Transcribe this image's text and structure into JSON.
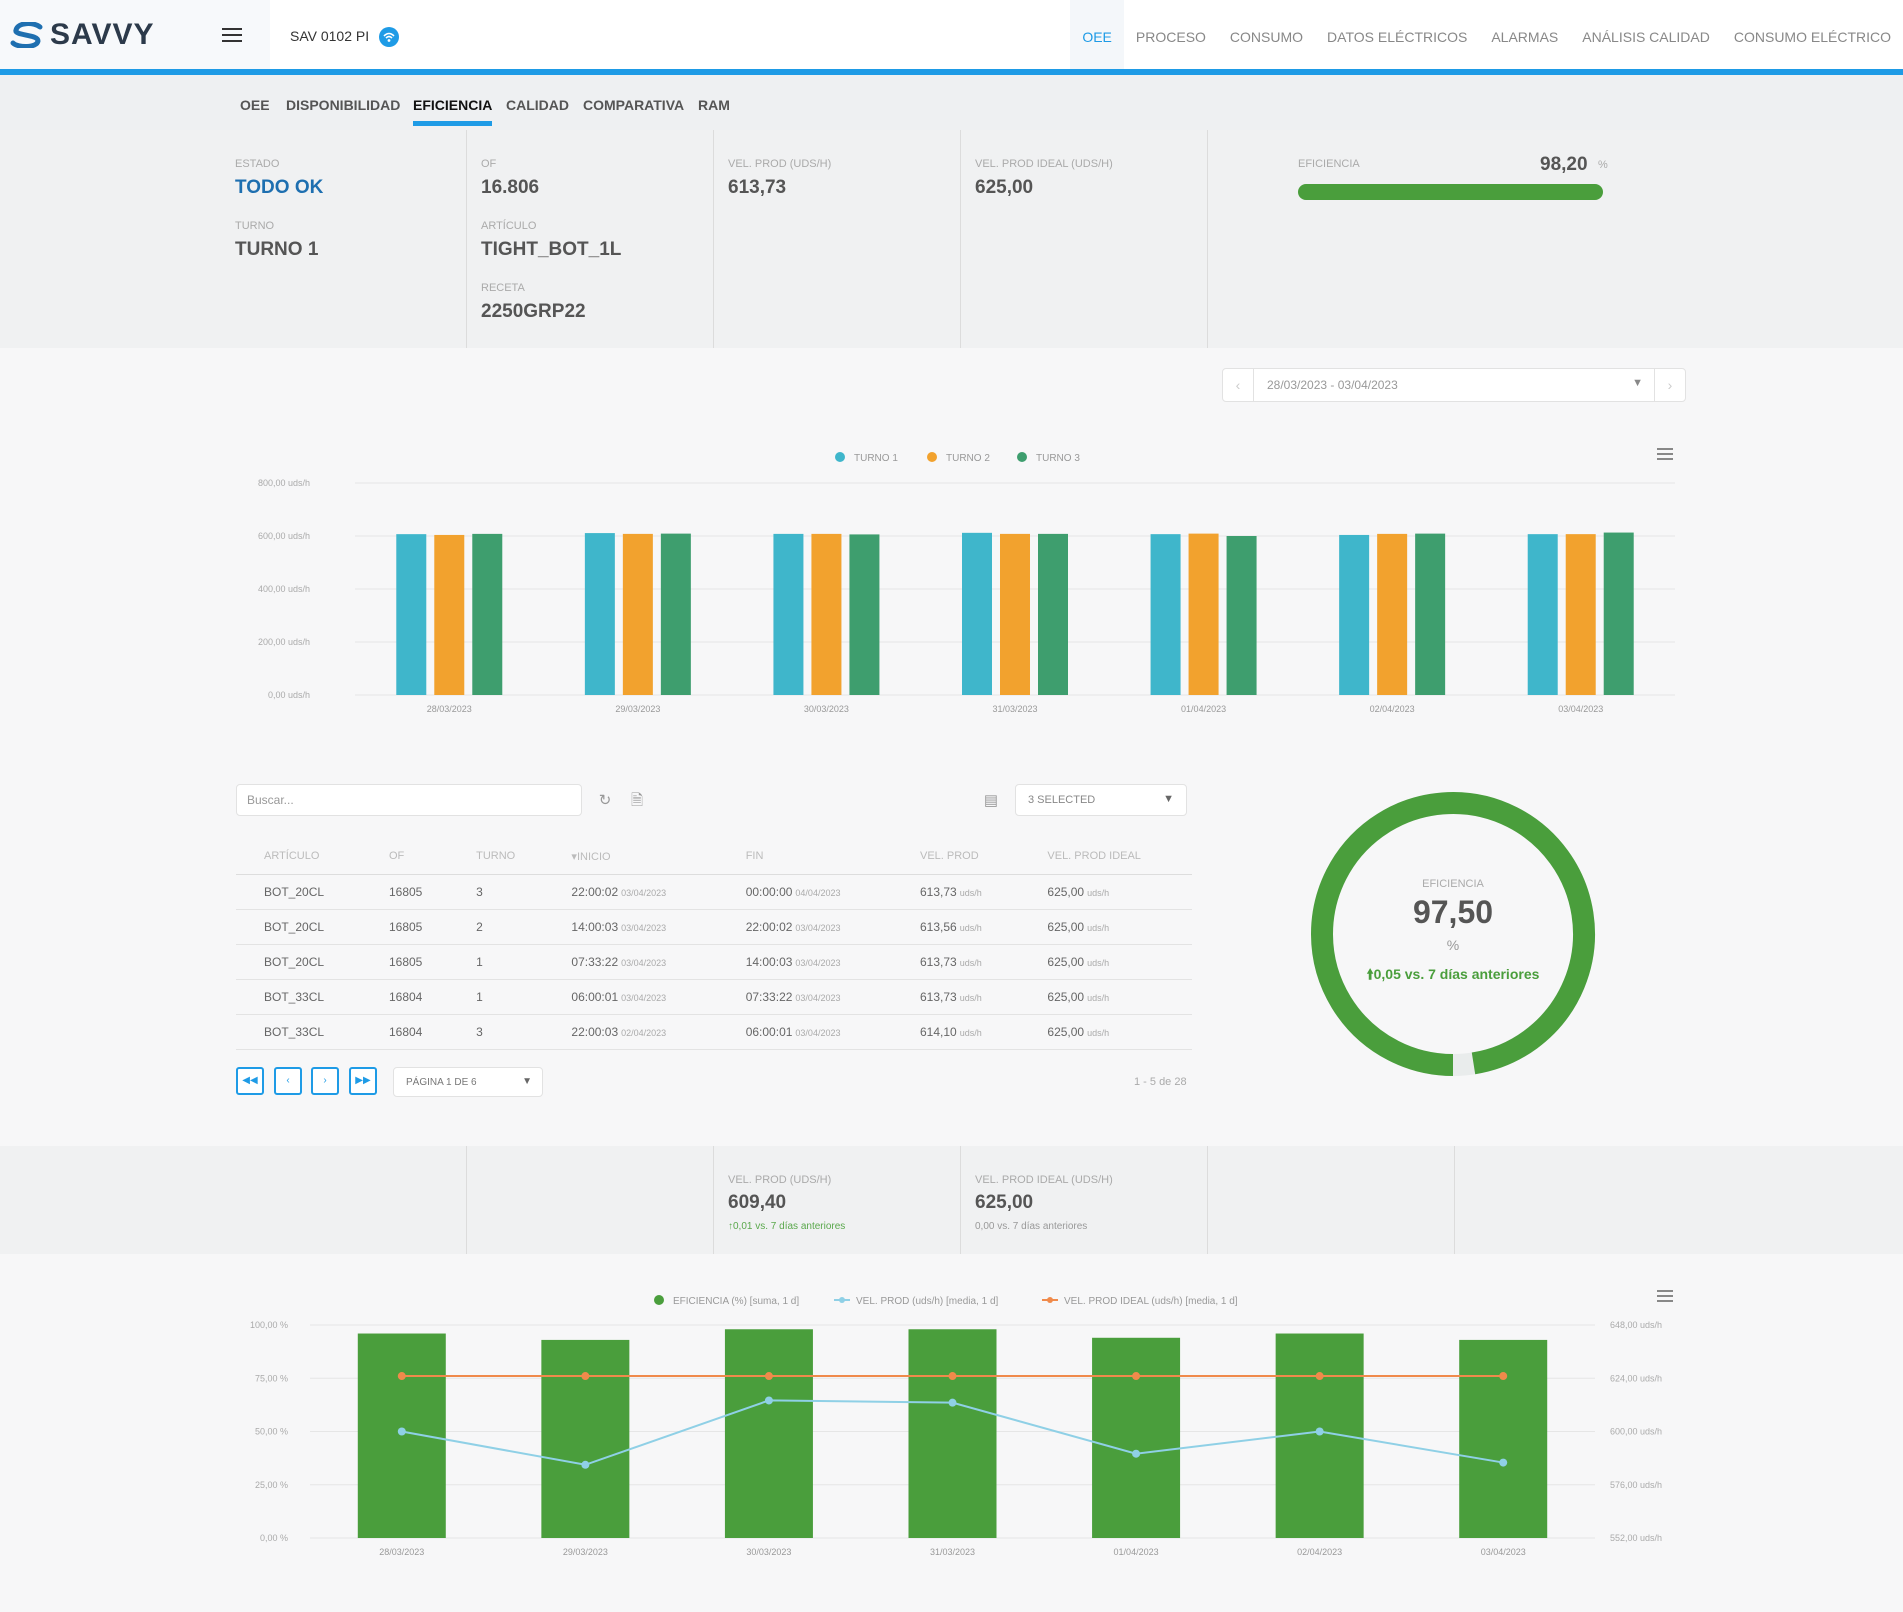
{
  "app": {
    "logo": "SAVVY",
    "machine": "SAV 0102 PI"
  },
  "top_nav": [
    "OEE",
    "PROCESO",
    "CONSUMO",
    "DATOS ELÉCTRICOS",
    "ALARMAS",
    "ANÁLISIS CALIDAD",
    "CONSUMO ELÉCTRICO"
  ],
  "sub_tabs": [
    "OEE",
    "DISPONIBILIDAD",
    "EFICIENCIA",
    "CALIDAD",
    "COMPARATIVA",
    "RAM"
  ],
  "kpi": {
    "estado_label": "ESTADO",
    "estado": "TODO OK",
    "turno_label": "TURNO",
    "turno": "TURNO 1",
    "of_label": "OF",
    "of": "16.806",
    "articulo_label": "ARTÍCULO",
    "articulo": "TIGHT_BOT_1L",
    "receta_label": "RECETA",
    "receta": "2250GRP22",
    "vel_label": "VEL. PROD (uds/h)",
    "vel": "613,73",
    "vel_ideal_label": "VEL. PROD IDEAL (uds/h)",
    "vel_ideal": "625,00",
    "eficiencia_label": "EFICIENCIA",
    "eficiencia": "98,20",
    "eficiencia_unit": "%",
    "eficiencia_fraction": 0.982
  },
  "date_range": "28/03/2023 - 03/04/2023",
  "chart1": {
    "type": "bar",
    "legend": [
      "TURNO 1",
      "TURNO 2",
      "TURNO 3"
    ],
    "colors": [
      "#3fb6cb",
      "#f2a22e",
      "#3e9e6e"
    ],
    "y_ticks": [
      "0,00 uds/h",
      "200,00 uds/h",
      "400,00 uds/h",
      "600,00 uds/h",
      "800,00 uds/h"
    ],
    "ylim": [
      0,
      800
    ],
    "categories": [
      "28/03/2023",
      "29/03/2023",
      "30/03/2023",
      "31/03/2023",
      "01/04/2023",
      "02/04/2023",
      "03/04/2023"
    ],
    "series": [
      {
        "name": "TURNO 1",
        "values": [
          607,
          611,
          608,
          612,
          607,
          604,
          607
        ]
      },
      {
        "name": "TURNO 2",
        "values": [
          604,
          608,
          608,
          608,
          609,
          608,
          607
        ]
      },
      {
        "name": "TURNO 3",
        "values": [
          608,
          609,
          606,
          608,
          600,
          609,
          613
        ]
      }
    ]
  },
  "table": {
    "search_placeholder": "Buscar...",
    "col_selector": "3 SELECTED",
    "headers": [
      "ARTÍCULO",
      "OF",
      "TURNO",
      "INICIO",
      "FIN",
      "VEL. PROD",
      "VEL. PROD IDEAL"
    ],
    "rows": [
      {
        "articulo": "BOT_20CL",
        "of": "16805",
        "turno": "3",
        "inicio": "22:00:02",
        "inicio_fecha": "03/04/2023",
        "fin": "00:00:00",
        "fin_fecha": "04/04/2023",
        "vel": "613,73",
        "vel_ideal": "625,00"
      },
      {
        "articulo": "BOT_20CL",
        "of": "16805",
        "turno": "2",
        "inicio": "14:00:03",
        "inicio_fecha": "03/04/2023",
        "fin": "22:00:02",
        "fin_fecha": "03/04/2023",
        "vel": "613,56",
        "vel_ideal": "625,00"
      },
      {
        "articulo": "BOT_20CL",
        "of": "16805",
        "turno": "1",
        "inicio": "07:33:22",
        "inicio_fecha": "03/04/2023",
        "fin": "14:00:03",
        "fin_fecha": "03/04/2023",
        "vel": "613,73",
        "vel_ideal": "625,00"
      },
      {
        "articulo": "BOT_33CL",
        "of": "16804",
        "turno": "1",
        "inicio": "06:00:01",
        "inicio_fecha": "03/04/2023",
        "fin": "07:33:22",
        "fin_fecha": "03/04/2023",
        "vel": "613,73",
        "vel_ideal": "625,00"
      },
      {
        "articulo": "BOT_33CL",
        "of": "16804",
        "turno": "3",
        "inicio": "22:00:03",
        "inicio_fecha": "02/04/2023",
        "fin": "06:00:01",
        "fin_fecha": "03/04/2023",
        "vel": "614,10",
        "vel_ideal": "625,00"
      }
    ],
    "unit": "uds/h",
    "page_select": "PÁGINA 1 DE 6",
    "page_info": "1 - 5 de 28"
  },
  "gauge": {
    "label": "EFICIENCIA",
    "value": "97,50",
    "unit": "%",
    "comparison": "0,05 vs. 7 días anteriores",
    "fraction": 0.975
  },
  "kpi2": {
    "vel_label": "VEL. PROD (uds/h)",
    "vel": "609,40",
    "vel_cmp": "0,01 vs. 7 días anteriores",
    "vel_ideal_label": "VEL. PROD IDEAL (uds/h)",
    "vel_ideal": "625,00",
    "vel_ideal_cmp": "0,00 vs. 7 días anteriores"
  },
  "chart2": {
    "type": "bar+line",
    "legend": [
      "EFICIENCIA (%) [suma, 1 d]",
      "VEL. PROD (uds/h) [media, 1 d]",
      "VEL. PROD IDEAL (uds/h) [media, 1 d]"
    ],
    "colors": [
      "#4a9e3c",
      "#8fd0e6",
      "#f08a4b"
    ],
    "y_left_ticks": [
      "0,00 %",
      "25,00 %",
      "50,00 %",
      "75,00 %",
      "100,00 %"
    ],
    "y_right_ticks": [
      "552,00 uds/h",
      "576,00 uds/h",
      "600,00 uds/h",
      "624,00 uds/h",
      "648,00 uds/h"
    ],
    "ylim_left": [
      0,
      100
    ],
    "ylim_right": [
      552,
      648
    ],
    "categories": [
      "28/03/2023",
      "29/03/2023",
      "30/03/2023",
      "31/03/2023",
      "01/04/2023",
      "02/04/2023",
      "03/04/2023"
    ],
    "eficiencia": [
      96,
      93,
      98,
      98,
      94,
      96,
      93
    ],
    "vel_prod": [
      600,
      585,
      614,
      613,
      590,
      600,
      586
    ],
    "vel_ideal": [
      625,
      625,
      625,
      625,
      625,
      625,
      625
    ]
  }
}
